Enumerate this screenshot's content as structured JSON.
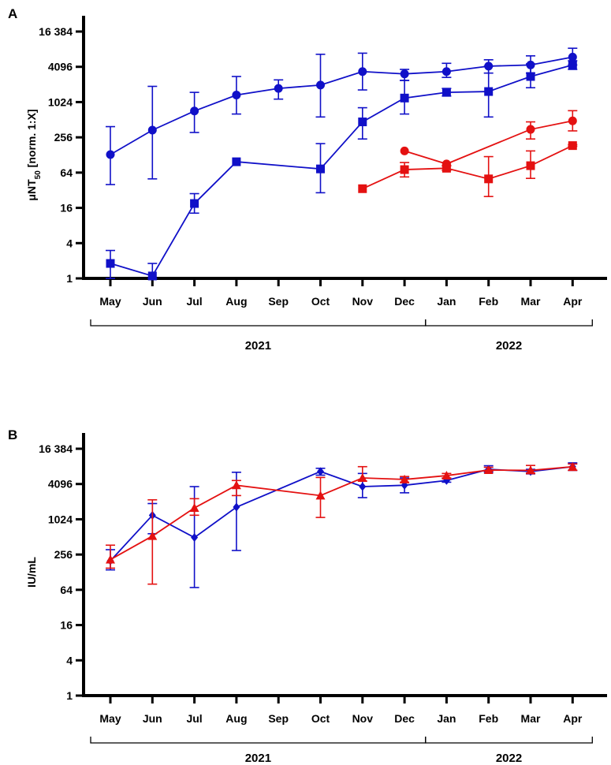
{
  "chart_data": [
    {
      "panel": "A",
      "type": "line",
      "ylabel_main": "μNT",
      "ylabel_sub": "50",
      "ylabel_rest": " [norm. 1:X]",
      "yscale": "log2",
      "ylim": [
        1,
        16384
      ],
      "yticks": [
        1,
        4,
        16,
        64,
        256,
        1024,
        4096,
        16384
      ],
      "ytick_labels": [
        "1",
        "4",
        "16",
        "64",
        "256",
        "1024",
        "4096",
        "16 384"
      ],
      "categories": [
        "May",
        "Jun",
        "Jul",
        "Aug",
        "Sep",
        "Oct",
        "Nov",
        "Dec",
        "Jan",
        "Feb",
        "Mar",
        "Apr"
      ],
      "year_groups": [
        {
          "label": "2021",
          "from": 0,
          "to": 7
        },
        {
          "label": "2022",
          "from": 8,
          "to": 11
        }
      ],
      "series": [
        {
          "color": "#1010c8",
          "marker": "circle",
          "points": [
            {
              "x": 0,
              "y": 130,
              "lo": 40,
              "hi": 390
            },
            {
              "x": 1,
              "y": 340,
              "lo": 50,
              "hi": 1900
            },
            {
              "x": 2,
              "y": 720,
              "lo": 310,
              "hi": 1500
            },
            {
              "x": 3,
              "y": 1350,
              "lo": 640,
              "hi": 2800
            },
            {
              "x": 4,
              "y": 1750,
              "lo": 1150,
              "hi": 2450
            },
            {
              "x": 5,
              "y": 2000,
              "lo": 570,
              "hi": 6700
            },
            {
              "x": 6,
              "y": 3400,
              "lo": 1650,
              "hi": 7000
            },
            {
              "x": 7,
              "y": 3100,
              "lo": 2400,
              "hi": 3700
            },
            {
              "x": 8,
              "y": 3400,
              "lo": 2700,
              "hi": 4700
            },
            {
              "x": 9,
              "y": 4200,
              "lo": 3200,
              "hi": 5400
            },
            {
              "x": 10,
              "y": 4400,
              "lo": 3200,
              "hi": 6300
            },
            {
              "x": 11,
              "y": 6000,
              "lo": 4400,
              "hi": 8500
            }
          ]
        },
        {
          "color": "#1010c8",
          "marker": "square",
          "points": [
            {
              "x": 0,
              "y": 1.8,
              "lo": 1.0,
              "hi": 3.0
            },
            {
              "x": 1,
              "y": 1.1,
              "lo": 1.0,
              "hi": 1.8
            },
            {
              "x": 2,
              "y": 19,
              "lo": 13,
              "hi": 28
            },
            {
              "x": 3,
              "y": 98,
              "lo": 98,
              "hi": 98
            },
            {
              "x": 4,
              "y": null
            },
            {
              "x": 5,
              "y": 74,
              "lo": 29,
              "hi": 200
            },
            {
              "x": 6,
              "y": 470,
              "lo": 240,
              "hi": 820
            },
            {
              "x": 7,
              "y": 1200,
              "lo": 640,
              "hi": 2400
            },
            {
              "x": 8,
              "y": 1500,
              "lo": 1300,
              "hi": 1750
            },
            {
              "x": 9,
              "y": 1550,
              "lo": 570,
              "hi": 4200
            },
            {
              "x": 10,
              "y": 2800,
              "lo": 1800,
              "hi": 4600
            },
            {
              "x": 11,
              "y": 4400,
              "lo": 3700,
              "hi": 5200
            }
          ]
        },
        {
          "color": "#e41111",
          "marker": "circle",
          "points": [
            {
              "x": 7,
              "y": 150
            },
            {
              "x": 8,
              "y": 90,
              "lo": 85,
              "hi": 95
            },
            {
              "x": 10,
              "y": 350,
              "lo": 240,
              "hi": 470
            },
            {
              "x": 11,
              "y": 490,
              "lo": 330,
              "hi": 730
            }
          ]
        },
        {
          "color": "#e41111",
          "marker": "square",
          "points": [
            {
              "x": 6,
              "y": 34
            },
            {
              "x": 7,
              "y": 72,
              "lo": 54,
              "hi": 95
            },
            {
              "x": 8,
              "y": 76,
              "lo": 70,
              "hi": 83
            },
            {
              "x": 9,
              "y": 50,
              "lo": 25,
              "hi": 120
            },
            {
              "x": 10,
              "y": 84,
              "lo": 51,
              "hi": 150
            },
            {
              "x": 11,
              "y": 185,
              "lo": 180,
              "hi": 192
            }
          ]
        }
      ]
    },
    {
      "panel": "B",
      "type": "line",
      "ylabel_main": "IU/mL",
      "yscale": "log2",
      "ylim": [
        1,
        16384
      ],
      "yticks": [
        1,
        4,
        16,
        64,
        256,
        1024,
        4096,
        16384
      ],
      "ytick_labels": [
        "1",
        "4",
        "16",
        "64",
        "256",
        "1024",
        "4096",
        "16 384"
      ],
      "categories": [
        "May",
        "Jun",
        "Jul",
        "Aug",
        "Sep",
        "Oct",
        "Nov",
        "Dec",
        "Jan",
        "Feb",
        "Mar",
        "Apr"
      ],
      "year_groups": [
        {
          "label": "2021",
          "from": 0,
          "to": 7
        },
        {
          "label": "2022",
          "from": 8,
          "to": 11
        }
      ],
      "series": [
        {
          "color": "#1010c8",
          "marker": "diamond",
          "points": [
            {
              "x": 0,
              "y": 200,
              "lo": 140,
              "hi": 310
            },
            {
              "x": 1,
              "y": 1200,
              "lo": 580,
              "hi": 1900
            },
            {
              "x": 2,
              "y": 500,
              "lo": 70,
              "hi": 3700
            },
            {
              "x": 3,
              "y": 1650,
              "lo": 300,
              "hi": 6500
            },
            {
              "x": 4,
              "y": null
            },
            {
              "x": 5,
              "y": 6700,
              "lo": 5800,
              "hi": 7600
            },
            {
              "x": 6,
              "y": 3700,
              "lo": 2400,
              "hi": 6200
            },
            {
              "x": 7,
              "y": 3900,
              "lo": 2900,
              "hi": 5200
            },
            {
              "x": 8,
              "y": 4700,
              "lo": 4400,
              "hi": 5100
            },
            {
              "x": 9,
              "y": 7300,
              "lo": 6500,
              "hi": 8400
            },
            {
              "x": 10,
              "y": 6700,
              "lo": 6100,
              "hi": 7300
            },
            {
              "x": 11,
              "y": 8100,
              "lo": 7000,
              "hi": 9400
            }
          ]
        },
        {
          "color": "#e41111",
          "marker": "triangle",
          "points": [
            {
              "x": 0,
              "y": 210,
              "lo": 150,
              "hi": 370
            },
            {
              "x": 1,
              "y": 530,
              "lo": 80,
              "hi": 2200
            },
            {
              "x": 2,
              "y": 1600,
              "lo": 1200,
              "hi": 2300
            },
            {
              "x": 3,
              "y": 3900,
              "lo": 2600,
              "hi": 4700
            },
            {
              "x": 4,
              "y": null
            },
            {
              "x": 5,
              "y": 2600,
              "lo": 1100,
              "hi": 5300
            },
            {
              "x": 6,
              "y": 5200,
              "lo": 4600,
              "hi": 8100
            },
            {
              "x": 7,
              "y": 4900,
              "lo": 4400,
              "hi": 5500
            },
            {
              "x": 8,
              "y": 5700,
              "lo": 5200,
              "hi": 6200
            },
            {
              "x": 9,
              "y": 7100,
              "lo": 6800,
              "hi": 7900
            },
            {
              "x": 10,
              "y": 7000,
              "lo": 6300,
              "hi": 8500
            },
            {
              "x": 11,
              "y": 8100,
              "lo": 7000,
              "hi": 9000
            }
          ]
        }
      ]
    }
  ]
}
